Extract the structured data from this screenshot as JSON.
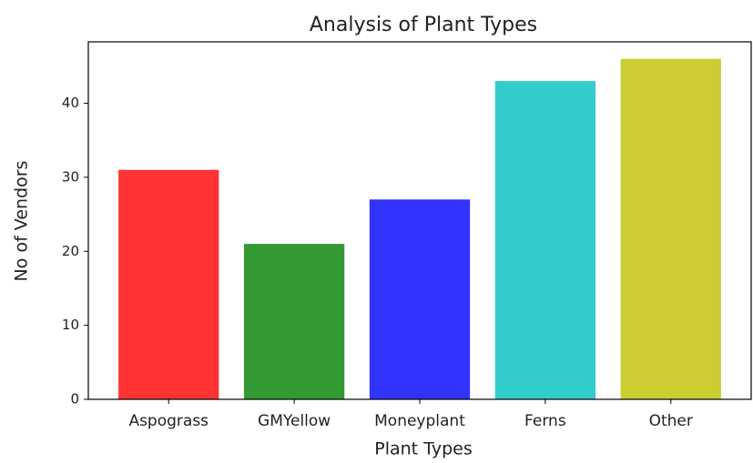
{
  "chart_data": {
    "type": "bar",
    "title": "Analysis of Plant Types",
    "x_label": "Plant Types",
    "y_label": "No of Vendors",
    "categories": [
      "Aspograss",
      "GMYellow",
      "Moneyplant",
      "Ferns",
      "Other"
    ],
    "values": [
      31,
      21,
      27,
      43,
      46
    ],
    "colors": [
      "#ff3333",
      "#339933",
      "#3333ff",
      "#33cccc",
      "#cccc33"
    ],
    "ylim": [
      0,
      48.3
    ],
    "yticks": [
      0,
      10,
      20,
      30,
      40
    ],
    "grid": false
  }
}
